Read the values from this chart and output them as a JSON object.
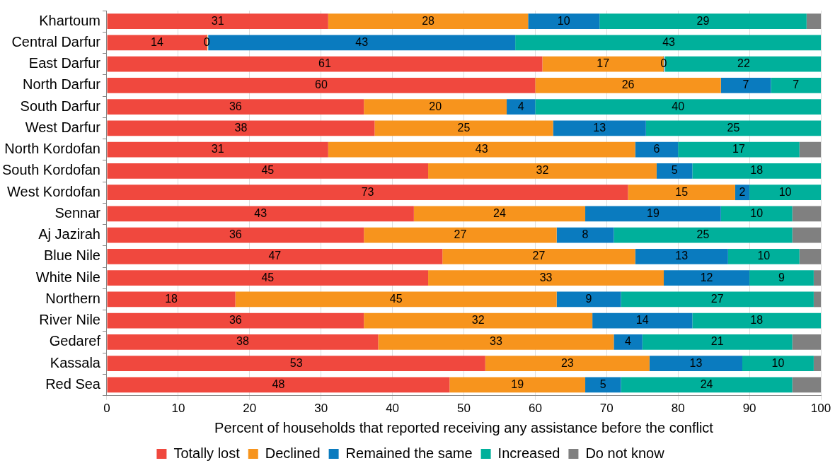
{
  "chart_data": {
    "type": "bar",
    "orientation": "horizontal",
    "stacked": true,
    "xlabel": "Percent of households that reported receiving any assistance before the conflict",
    "categories": [
      "Khartoum",
      "Central Darfur",
      "East Darfur",
      "North Darfur",
      "South Darfur",
      "West Darfur",
      "North Kordofan",
      "South Kordofan",
      "West Kordofan",
      "Sennar",
      "Aj Jazirah",
      "Blue Nile",
      "White Nile",
      "Northern",
      "River Nile",
      "Gedaref",
      "Kassala",
      "Red Sea"
    ],
    "series": [
      {
        "name": "Totally lost",
        "color": "#f0483e",
        "values": [
          31,
          14,
          61,
          60,
          36,
          37.5,
          31,
          45,
          73,
          43,
          36,
          47,
          45,
          18,
          36,
          38,
          53,
          48
        ],
        "value_labels": [
          "31",
          "14",
          "61",
          "60",
          "36",
          "38",
          "31",
          "45",
          "73",
          "43",
          "36",
          "47",
          "45",
          "18",
          "36",
          "38",
          "53",
          "48"
        ]
      },
      {
        "name": "Declined",
        "color": "#f7941d",
        "values": [
          28,
          0,
          17,
          26,
          20,
          25,
          43,
          32,
          15,
          24,
          27,
          27,
          33,
          45,
          32,
          33,
          23,
          19
        ],
        "value_labels": [
          "28",
          "0",
          "17",
          "26",
          "20",
          "25",
          "43",
          "32",
          "15",
          "24",
          "27",
          "27",
          "33",
          "45",
          "32",
          "33",
          "23",
          "19"
        ]
      },
      {
        "name": "Remained the same",
        "color": "#0a7bbf",
        "values": [
          10,
          43,
          0,
          7,
          4,
          13,
          6,
          5,
          2,
          19,
          8,
          13,
          12,
          9,
          14,
          4,
          13,
          5
        ],
        "value_labels": [
          "10",
          "43",
          "0",
          "7",
          "4",
          "13",
          "6",
          "5",
          "2",
          "19",
          "8",
          "13",
          "12",
          "9",
          "14",
          "4",
          "13",
          "5"
        ]
      },
      {
        "name": "Increased",
        "color": "#00b09b",
        "values": [
          29,
          43,
          22,
          7,
          40,
          24.5,
          17,
          18,
          10,
          10,
          25,
          10,
          9,
          27,
          18,
          21,
          10,
          24
        ],
        "value_labels": [
          "29",
          "43",
          "22",
          "7",
          "40",
          "25",
          "17",
          "18",
          "10",
          "10",
          "25",
          "10",
          "9",
          "27",
          "18",
          "21",
          "10",
          "24"
        ]
      },
      {
        "name": "Do not know",
        "color": "#808080",
        "values": [
          2,
          0,
          0,
          0,
          0,
          0,
          3,
          0,
          0,
          4,
          4,
          3,
          1,
          1,
          0,
          4,
          1,
          4
        ]
      }
    ],
    "xlim": [
      0,
      100
    ],
    "xticks": [
      0,
      10,
      20,
      30,
      40,
      50,
      60,
      70,
      80,
      90,
      100
    ],
    "grid": "x",
    "legend": "bottom"
  }
}
